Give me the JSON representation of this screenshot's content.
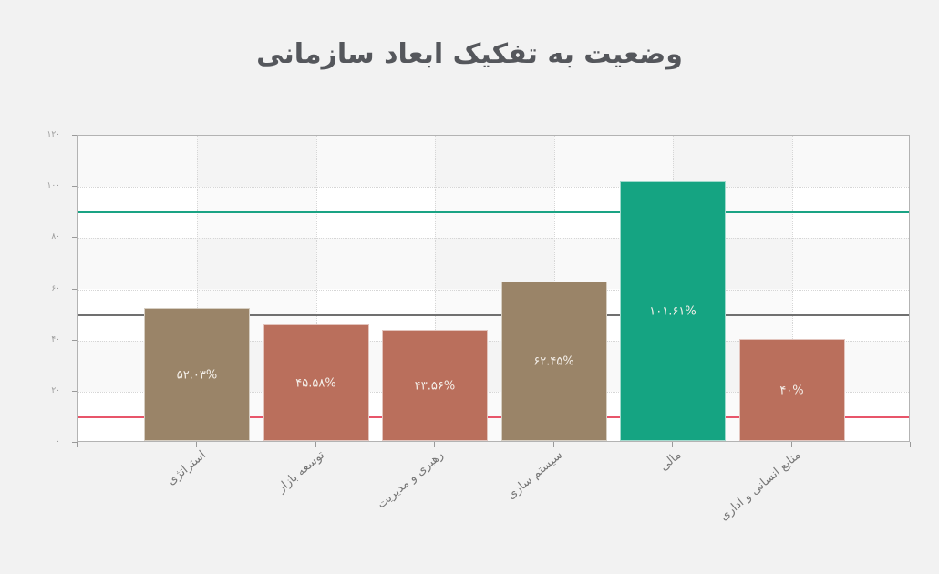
{
  "title": "وضعیت به تفکیک ابعاد سازمانی",
  "colors": {
    "background": "#f2f2f2",
    "plot_bg": "#ffffff",
    "band_alt": "#f9f9f9",
    "bar_brown": "#9a8468",
    "bar_red": "#ba6f5c",
    "bar_green": "#15a482",
    "ref_green": "#1aa384",
    "ref_gray": "#707070",
    "ref_red": "#e8556a"
  },
  "y_ticks": [
    "۰",
    "۲۰",
    "۴۰",
    "۶۰",
    "۸۰",
    "۱۰۰",
    "۱۲۰"
  ],
  "chart_data": {
    "type": "bar",
    "title": "وضعیت به تفکیک ابعاد سازمانی",
    "xlabel": "",
    "ylabel": "",
    "ylim": [
      0,
      120
    ],
    "grid": true,
    "categories": [
      "استراتژی",
      "توسعه بازار",
      "رهبری و مدیریت",
      "سیستم سازی",
      "مالی",
      "منابع انسانی و اداری"
    ],
    "values": [
      52.03,
      45.58,
      43.56,
      62.45,
      101.61,
      40
    ],
    "data_labels": [
      "۵۲.۰۳%",
      "۴۵.۵۸%",
      "۴۳.۵۶%",
      "۶۲.۴۵%",
      "۱۰۱.۶۱%",
      "۴۰%"
    ],
    "bar_colors": [
      "#9a8468",
      "#ba6f5c",
      "#ba6f5c",
      "#9a8468",
      "#15a482",
      "#ba6f5c"
    ],
    "reference_lines": [
      {
        "value": 90,
        "color": "#1aa384"
      },
      {
        "value": 50,
        "color": "#707070"
      },
      {
        "value": 10,
        "color": "#e8556a"
      }
    ]
  }
}
